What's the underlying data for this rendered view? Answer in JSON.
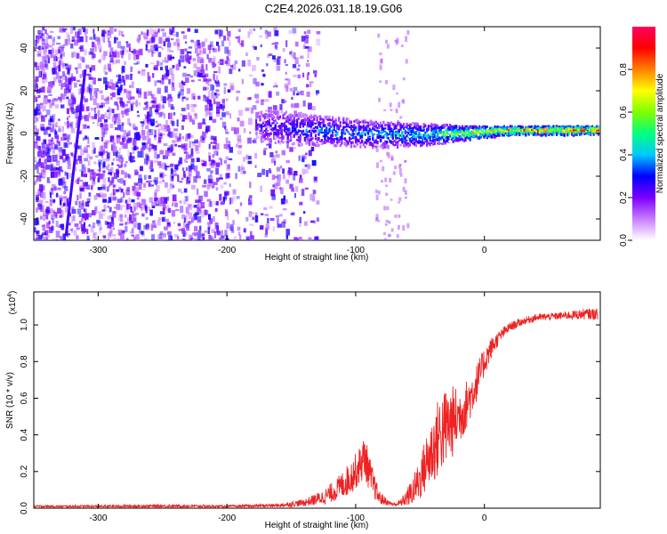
{
  "figure_title": "C2E4.2026.031.18.19.G06",
  "colors": {
    "spectrogram_cloud": "#8a2be2",
    "snr_line": "#ee2222",
    "colorbar_stops": [
      "#ffffff",
      "#c77dff",
      "#7b00ff",
      "#0000ff",
      "#00c8ff",
      "#00ff80",
      "#80ff00",
      "#ffff00",
      "#ff8000",
      "#ff0000",
      "#ff0060"
    ]
  },
  "chart_data": [
    {
      "type": "heatmap",
      "title": "C2E4.2026.031.18.19.G06",
      "xlabel": "Height of straight line (km)",
      "ylabel": "Frequency (Hz)",
      "xlim": [
        -350,
        90
      ],
      "ylim": [
        -50,
        50
      ],
      "x_ticks": [
        -300,
        -200,
        -100,
        0
      ],
      "x_tick_labels": [
        "-300",
        "-200",
        "-100",
        "0"
      ],
      "y_ticks": [
        -40,
        -20,
        0,
        20,
        40
      ],
      "y_tick_labels": [
        "-40",
        "-20",
        "0",
        "20",
        "40"
      ],
      "colorbar": {
        "label": "Normalized spectral amplitude",
        "range": [
          0,
          1
        ],
        "ticks": [
          0,
          0.2,
          0.4,
          0.6,
          0.8
        ],
        "tick_labels": [
          "0.0",
          "0.2",
          "0.4",
          "0.6",
          "0.8"
        ]
      },
      "features": {
        "noise_region_x": [
          -350,
          -140
        ],
        "noise_amplitude": 0.25,
        "diagonal_streak": {
          "x": [
            -325,
            -310
          ],
          "y": [
            -48,
            30
          ]
        },
        "signal_band": [
          {
            "x": -175,
            "freq": 4,
            "width": 8,
            "amplitude": 0.3
          },
          {
            "x": -130,
            "freq": 2,
            "width": 7,
            "amplitude": 0.4
          },
          {
            "x": -80,
            "freq": 0,
            "width": 6,
            "amplitude": 0.45
          },
          {
            "x": -40,
            "freq": 0,
            "width": 5,
            "amplitude": 0.55
          },
          {
            "x": -10,
            "freq": 1,
            "width": 3,
            "amplitude": 0.75
          },
          {
            "x": 20,
            "freq": 2,
            "width": 2,
            "amplitude": 0.85
          },
          {
            "x": 88,
            "freq": 2,
            "width": 2,
            "amplitude": 0.95
          }
        ]
      }
    },
    {
      "type": "line",
      "xlabel": "Height of straight line (km)",
      "ylabel": "SNR (10 * v/v)",
      "scale_label": "(x10",
      "scale_exponent": "4",
      "scale_suffix": ")",
      "xlim": [
        -350,
        90
      ],
      "ylim": [
        0,
        1.18
      ],
      "x_ticks": [
        -300,
        -200,
        -100,
        0
      ],
      "x_tick_labels": [
        "-300",
        "-200",
        "-100",
        "0"
      ],
      "y_ticks": [
        0,
        0.2,
        0.4,
        0.6,
        0.8,
        1.0
      ],
      "y_tick_labels": [
        "0.0",
        "0.2",
        "0.4",
        "0.6",
        "0.8",
        "1.0"
      ],
      "series": [
        {
          "name": "SNR",
          "x": [
            -350,
            -300,
            -250,
            -200,
            -160,
            -140,
            -125,
            -115,
            -105,
            -98,
            -93,
            -88,
            -82,
            -75,
            -70,
            -65,
            -60,
            -55,
            -50,
            -45,
            -40,
            -35,
            -30,
            -25,
            -20,
            -15,
            -10,
            -5,
            0,
            5,
            10,
            15,
            20,
            30,
            40,
            60,
            80,
            88
          ],
          "y": [
            0.01,
            0.01,
            0.012,
            0.01,
            0.015,
            0.03,
            0.06,
            0.1,
            0.16,
            0.22,
            0.28,
            0.16,
            0.06,
            0.03,
            0.02,
            0.03,
            0.06,
            0.1,
            0.16,
            0.25,
            0.32,
            0.4,
            0.44,
            0.47,
            0.5,
            0.55,
            0.62,
            0.7,
            0.8,
            0.87,
            0.92,
            0.96,
            0.99,
            1.02,
            1.04,
            1.05,
            1.06,
            1.06
          ],
          "noise_amplitude": [
            0.006,
            0.006,
            0.008,
            0.006,
            0.01,
            0.02,
            0.04,
            0.06,
            0.09,
            0.1,
            0.12,
            0.09,
            0.04,
            0.015,
            0.01,
            0.02,
            0.05,
            0.08,
            0.12,
            0.16,
            0.2,
            0.22,
            0.22,
            0.2,
            0.16,
            0.14,
            0.12,
            0.1,
            0.08,
            0.06,
            0.04,
            0.03,
            0.025,
            0.02,
            0.02,
            0.02,
            0.03,
            0.03
          ]
        }
      ]
    }
  ]
}
